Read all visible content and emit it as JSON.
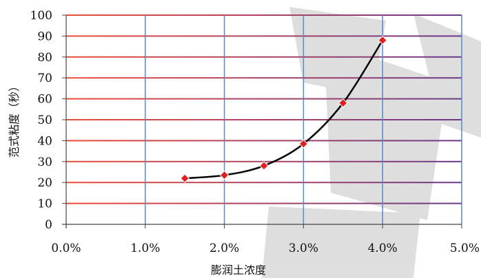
{
  "chart_data": {
    "type": "scatter",
    "title": "",
    "xlabel": "膨润土浓度",
    "ylabel": "范式粘度（秒）",
    "xlim": [
      0,
      0.05
    ],
    "ylim": [
      0,
      100
    ],
    "x_ticks": [
      "0.0%",
      "1.0%",
      "2.0%",
      "3.0%",
      "4.0%",
      "5.0%"
    ],
    "y_ticks": [
      "0",
      "10",
      "20",
      "30",
      "40",
      "50",
      "60",
      "70",
      "80",
      "90",
      "100"
    ],
    "series": [
      {
        "x": [
          0.015,
          0.02,
          0.025,
          0.03,
          0.035,
          0.04
        ],
        "y": [
          22,
          23.5,
          28,
          38.5,
          58,
          88
        ],
        "marker": "diamond",
        "marker_color": "#e02020",
        "trendline": "curve",
        "line_color": "#000000"
      }
    ],
    "grid": true,
    "legend": "none",
    "colors": {
      "vertical_grid": "#5a87c5",
      "horizontal_grid_start": "#f04a3a",
      "horizontal_grid_end": "#6a3a8a"
    }
  }
}
